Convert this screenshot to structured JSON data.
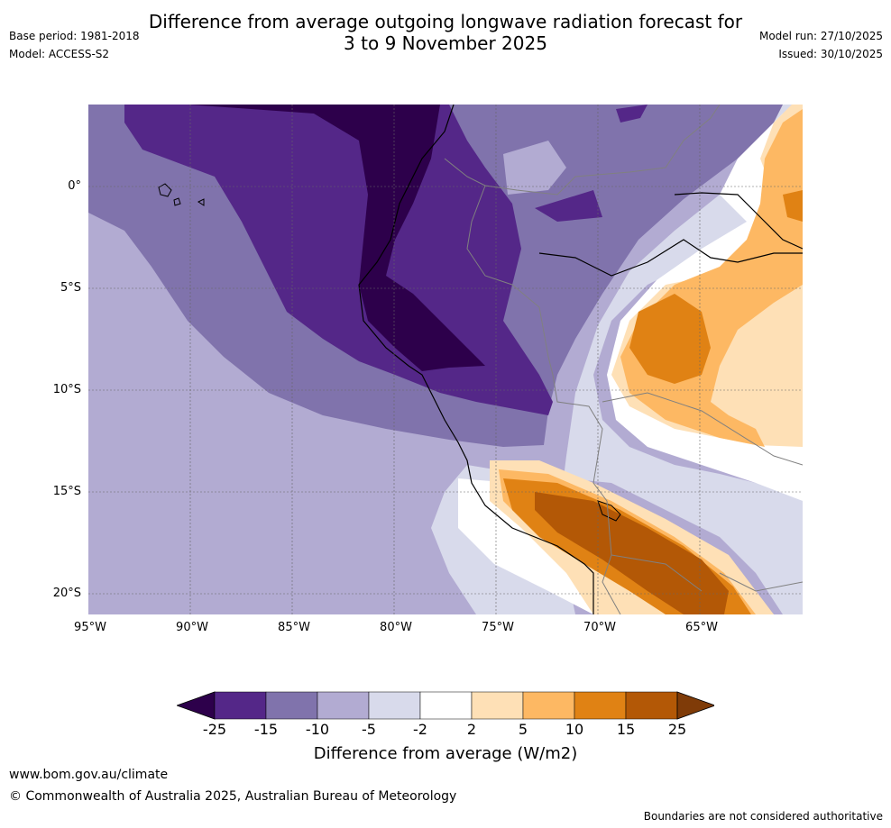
{
  "title": {
    "line1": "Difference from average outgoing longwave radiation forecast for",
    "line2": "3 to 9 November 2025"
  },
  "meta_left": {
    "base_period": "Base period: 1981-2018",
    "model": "Model: ACCESS-S2"
  },
  "meta_right": {
    "model_run": "Model run: 27/10/2025",
    "issued": "Issued: 30/10/2025"
  },
  "map": {
    "lat_labels": [
      "0°",
      "5°S",
      "10°S",
      "15°S",
      "20°S"
    ],
    "lon_labels": [
      "95°W",
      "90°W",
      "85°W",
      "80°W",
      "75°W",
      "70°W",
      "65°W"
    ]
  },
  "colorbar": {
    "title": "Difference from average (W/m2)",
    "ticks": [
      "-25",
      "-15",
      "-10",
      "-5",
      "-2",
      "2",
      "5",
      "10",
      "15",
      "25"
    ],
    "colors": [
      "#2d004b",
      "#542788",
      "#8073ac",
      "#b2abd2",
      "#d8daeb",
      "#ffffff",
      "#fee0b6",
      "#fdb863",
      "#e08214",
      "#b35806",
      "#7f3b08"
    ]
  },
  "footer": {
    "url": "www.bom.gov.au/climate",
    "copyright": "© Commonwealth of Australia 2025, Australian Bureau of Meteorology",
    "disclaimer": "Boundaries are not considered authoritative"
  }
}
